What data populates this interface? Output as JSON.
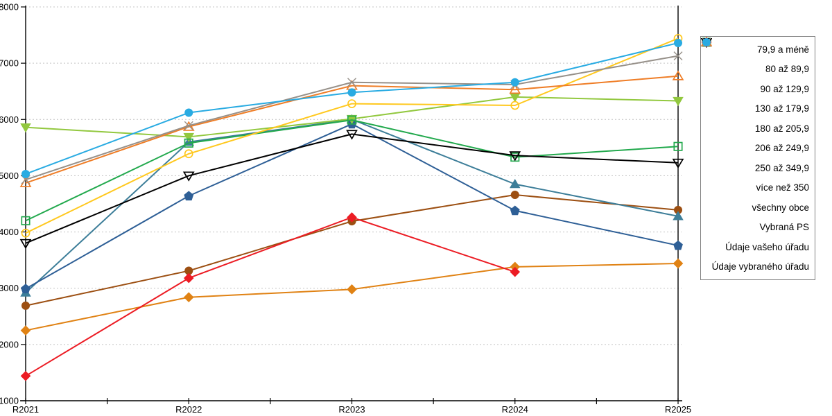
{
  "chart_data": {
    "type": "line",
    "title": "",
    "xlabel": "",
    "ylabel": "",
    "categories": [
      "R2021",
      "R2022",
      "R2023",
      "R2024",
      "R2025"
    ],
    "y_ticks": [
      1000,
      2000,
      3000,
      4000,
      5000,
      6000,
      7000,
      8000
    ],
    "ylim": [
      1000,
      8000
    ],
    "grid": "horizontal-dashed",
    "grid_color": "#c3c3c3",
    "axis_color": "#000000",
    "legend_position": "right-outside-box",
    "series": [
      {
        "name": "79,9 a méně",
        "marker": "diamond",
        "filled": true,
        "color": "#E08214",
        "values": [
          2250,
          2840,
          2980,
          3380,
          3440
        ]
      },
      {
        "name": "80 až 89,9",
        "marker": "circle",
        "filled": true,
        "color": "#9C4F12",
        "values": [
          2690,
          3310,
          4190,
          4660,
          4390
        ]
      },
      {
        "name": "90 až 129,9",
        "marker": "triangle-up",
        "filled": true,
        "color": "#3D7E99",
        "values": [
          2920,
          5600,
          6000,
          4850,
          4280
        ]
      },
      {
        "name": "130 až 179,9",
        "marker": "pentagon",
        "filled": true,
        "color": "#2E5F96",
        "values": [
          2990,
          4640,
          5920,
          4380,
          3760
        ]
      },
      {
        "name": "180 až 205,9",
        "marker": "triangle-down",
        "filled": true,
        "color": "#92C83F",
        "values": [
          5860,
          5690,
          6010,
          6400,
          6330
        ]
      },
      {
        "name": "206 až 249,9",
        "marker": "square",
        "filled": false,
        "color": "#22A94D",
        "values": [
          4200,
          5580,
          5990,
          5330,
          5520
        ]
      },
      {
        "name": "250 až 349,9",
        "marker": "circle",
        "filled": false,
        "color": "#FFC81E",
        "values": [
          3980,
          5390,
          6280,
          6250,
          7440
        ]
      },
      {
        "name": "více než 350",
        "marker": "triangle-up",
        "filled": false,
        "color": "#EF7D26",
        "values": [
          4870,
          5870,
          6600,
          6530,
          6770
        ]
      },
      {
        "name": "všechny obce",
        "marker": "triangle-down",
        "filled": false,
        "color": "#000000",
        "values": [
          3800,
          5000,
          5740,
          5360,
          5230
        ]
      },
      {
        "name": "Vybraná PS",
        "marker": "x",
        "filled": false,
        "color": "#969089",
        "values": [
          4930,
          5890,
          6660,
          6620,
          7130
        ]
      },
      {
        "name": "Údaje vašeho úřadu",
        "marker": "diamond",
        "filled": true,
        "color": "#EC1C24",
        "values": [
          1440,
          3180,
          4260,
          3290,
          null
        ]
      },
      {
        "name": "Údaje vybraného úřadu",
        "marker": "circle",
        "filled": true,
        "color": "#29ABE2",
        "values": [
          5030,
          6120,
          6480,
          6660,
          7360
        ]
      }
    ]
  }
}
